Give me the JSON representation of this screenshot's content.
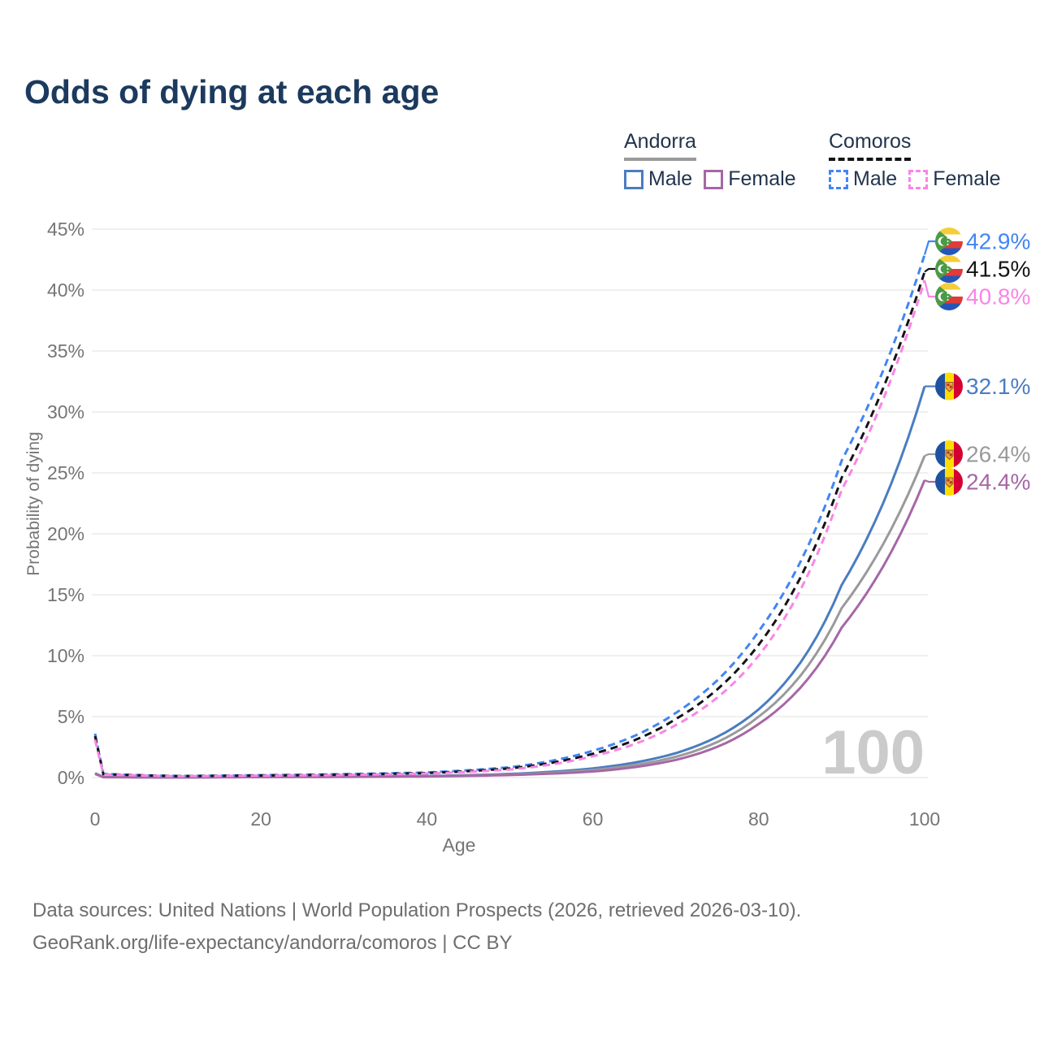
{
  "title": "Odds of dying at each age",
  "legend": {
    "groups": [
      {
        "label": "Andorra",
        "line_style": "solid",
        "line_color": "#9a9a9a",
        "items": [
          {
            "label": "Male",
            "color": "#4a7dc1",
            "dashed": false
          },
          {
            "label": "Female",
            "color": "#a667a6",
            "dashed": false
          }
        ]
      },
      {
        "label": "Comoros",
        "line_style": "dashed",
        "line_color": "#141414",
        "items": [
          {
            "label": "Male",
            "color": "#4285f4",
            "dashed": true
          },
          {
            "label": "Female",
            "color": "#f985e5",
            "dashed": true
          }
        ]
      }
    ]
  },
  "watermark_age": "100",
  "footer": {
    "line1": "Data sources: United Nations | World Population Prospects (2026, retrieved 2026-03-10).",
    "line2": "GeoRank.org/life-expectancy/andorra/comoros | CC BY"
  },
  "chart_data": {
    "type": "line",
    "title": "Odds of dying at each age",
    "xlabel": "Age",
    "ylabel": "Probability of dying",
    "x_ticks": [
      0,
      20,
      40,
      60,
      80,
      100
    ],
    "y_tick_labels": [
      "0%",
      "5%",
      "10%",
      "15%",
      "20%",
      "25%",
      "30%",
      "35%",
      "40%",
      "45%"
    ],
    "y_ticks_percent": [
      0,
      5,
      10,
      15,
      20,
      25,
      30,
      35,
      40,
      45
    ],
    "xlim": [
      0,
      100
    ],
    "ylim_percent": [
      0,
      45
    ],
    "grid": "horizontal-only",
    "legend_position": "top-right",
    "sample_ages": [
      0,
      1,
      10,
      20,
      30,
      40,
      50,
      60,
      70,
      80,
      90,
      100
    ],
    "series": [
      {
        "name": "Comoros Male",
        "country": "Comoros",
        "sex": "male",
        "style": "dashed",
        "color": "#4285f4",
        "flag": "comoros",
        "end_label": "42.9%",
        "end_value_percent": 42.9,
        "label_color": "#4285f4",
        "values_percent": [
          3.6,
          0.3,
          0.13,
          0.2,
          0.28,
          0.42,
          0.85,
          2.2,
          5.3,
          12.0,
          26.0,
          42.9
        ]
      },
      {
        "name": "Comoros Overall",
        "country": "Comoros",
        "sex": "both",
        "style": "dashed",
        "color": "#141414",
        "flag": "comoros",
        "end_label": "41.5%",
        "end_value_percent": 41.5,
        "label_color": "#141414",
        "values_percent": [
          3.4,
          0.28,
          0.12,
          0.17,
          0.24,
          0.37,
          0.75,
          1.95,
          4.8,
          10.9,
          24.6,
          41.5
        ]
      },
      {
        "name": "Comoros Female",
        "country": "Comoros",
        "sex": "female",
        "style": "dashed",
        "color": "#f985e5",
        "flag": "comoros",
        "end_label": "40.8%",
        "end_value_percent": 40.8,
        "label_color": "#f985e5",
        "values_percent": [
          3.1,
          0.26,
          0.11,
          0.15,
          0.21,
          0.33,
          0.66,
          1.75,
          4.3,
          10.0,
          23.6,
          40.8
        ]
      },
      {
        "name": "Andorra Male",
        "country": "Andorra",
        "sex": "male",
        "style": "solid",
        "color": "#4a7dc1",
        "flag": "andorra",
        "end_label": "32.1%",
        "end_value_percent": 32.1,
        "label_color": "#4a7dc1",
        "values_percent": [
          0.36,
          0.04,
          0.02,
          0.06,
          0.08,
          0.13,
          0.3,
          0.75,
          2.0,
          5.6,
          15.8,
          32.1
        ]
      },
      {
        "name": "Andorra Overall",
        "country": "Andorra",
        "sex": "both",
        "style": "solid",
        "color": "#9a9a9a",
        "flag": "andorra",
        "end_label": "26.4%",
        "end_value_percent": 26.4,
        "label_color": "#9a9a9a",
        "values_percent": [
          0.33,
          0.035,
          0.018,
          0.05,
          0.07,
          0.11,
          0.25,
          0.62,
          1.7,
          5.0,
          13.9,
          26.4
        ]
      },
      {
        "name": "Andorra Female",
        "country": "Andorra",
        "sex": "female",
        "style": "solid",
        "color": "#a667a6",
        "flag": "andorra",
        "end_label": "24.4%",
        "end_value_percent": 24.4,
        "label_color": "#a667a6",
        "values_percent": [
          0.3,
          0.03,
          0.015,
          0.04,
          0.06,
          0.09,
          0.21,
          0.5,
          1.45,
          4.4,
          12.3,
          24.4
        ]
      }
    ]
  }
}
